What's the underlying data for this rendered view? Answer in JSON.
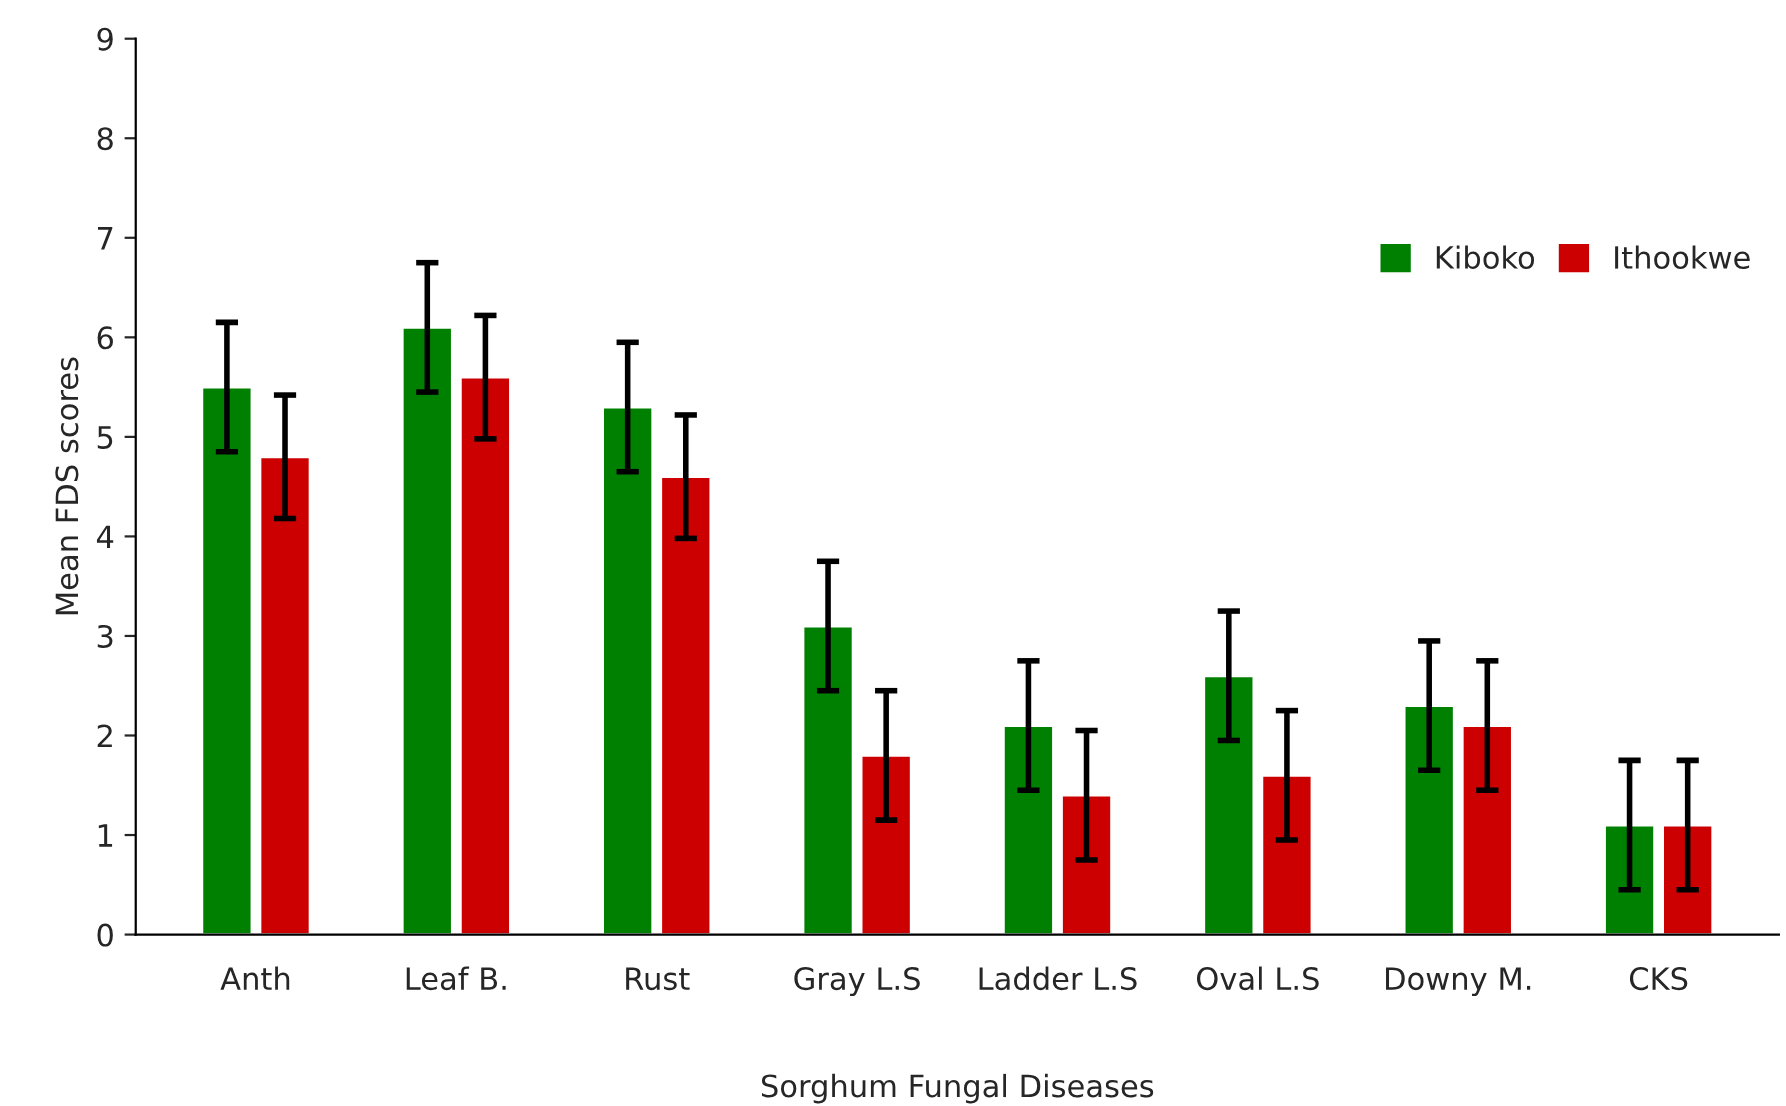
{
  "chart_data": {
    "type": "bar",
    "xlabel": "Sorghum Fungal Diseases",
    "ylabel": "Mean FDS scores",
    "categories": [
      "Anth",
      "Leaf B.",
      "Rust",
      "Gray L.S",
      "Ladder L.S",
      "Oval L.S",
      "Downy M.",
      "CKS"
    ],
    "series": [
      {
        "name": "Kiboko",
        "color": "#008000",
        "values": [
          5.5,
          6.1,
          5.3,
          3.1,
          2.1,
          2.6,
          2.3,
          1.1
        ],
        "errors": [
          0.65,
          0.65,
          0.65,
          0.65,
          0.65,
          0.65,
          0.65,
          0.65
        ]
      },
      {
        "name": "Ithookwe",
        "color": "#cc0000",
        "values": [
          4.8,
          5.6,
          4.6,
          1.8,
          1.4,
          1.6,
          2.1,
          1.1
        ],
        "errors": [
          0.62,
          0.62,
          0.62,
          0.65,
          0.65,
          0.65,
          0.65,
          0.65
        ]
      }
    ],
    "ylim": [
      0,
      9
    ],
    "yticks": [
      0,
      1,
      2,
      3,
      4,
      5,
      6,
      7,
      8,
      9
    ],
    "grid": false,
    "legend": "top right"
  }
}
